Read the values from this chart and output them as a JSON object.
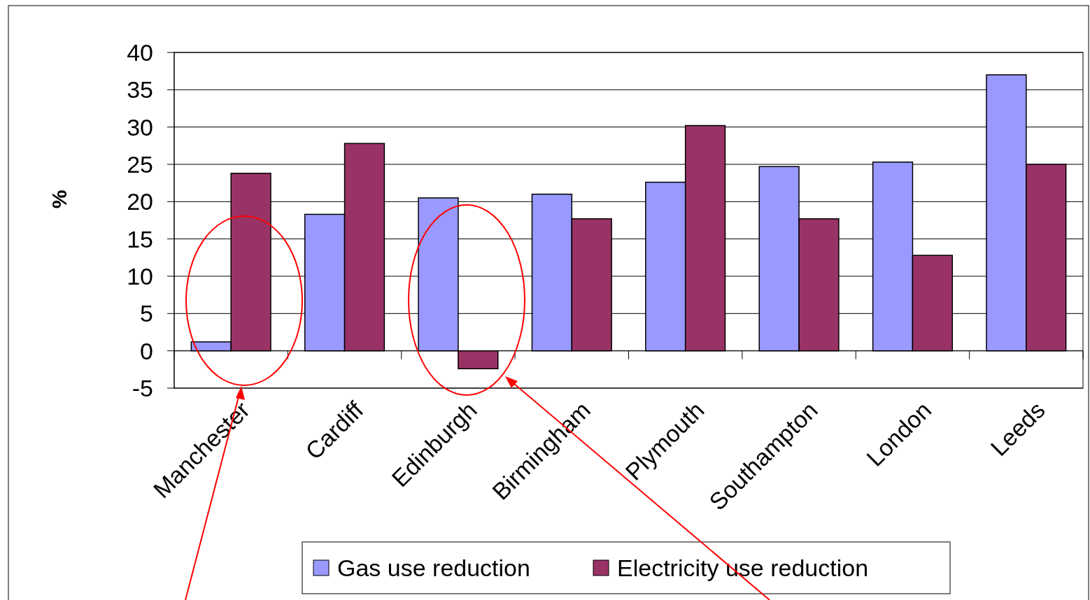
{
  "chart_data": {
    "type": "bar",
    "ylabel": "%",
    "categories": [
      "Manchester",
      "Cardiff",
      "Edinburgh",
      "Birmingham",
      "Plymouth",
      "Southampton",
      "London",
      "Leeds"
    ],
    "series": [
      {
        "name": "Gas use reduction",
        "color": "#9999ff",
        "values": [
          1.2,
          18.3,
          20.5,
          21.0,
          22.6,
          24.7,
          25.3,
          37.0
        ]
      },
      {
        "name": "Electricity use reduction",
        "color": "#993366",
        "values": [
          23.8,
          27.8,
          -2.4,
          17.7,
          30.2,
          17.7,
          12.8,
          25.0
        ]
      }
    ],
    "ylim": [
      -5,
      40
    ],
    "yticks": [
      -5,
      0,
      5,
      10,
      15,
      20,
      25,
      30,
      35,
      40
    ],
    "grid": "y",
    "legend": "bottom"
  }
}
